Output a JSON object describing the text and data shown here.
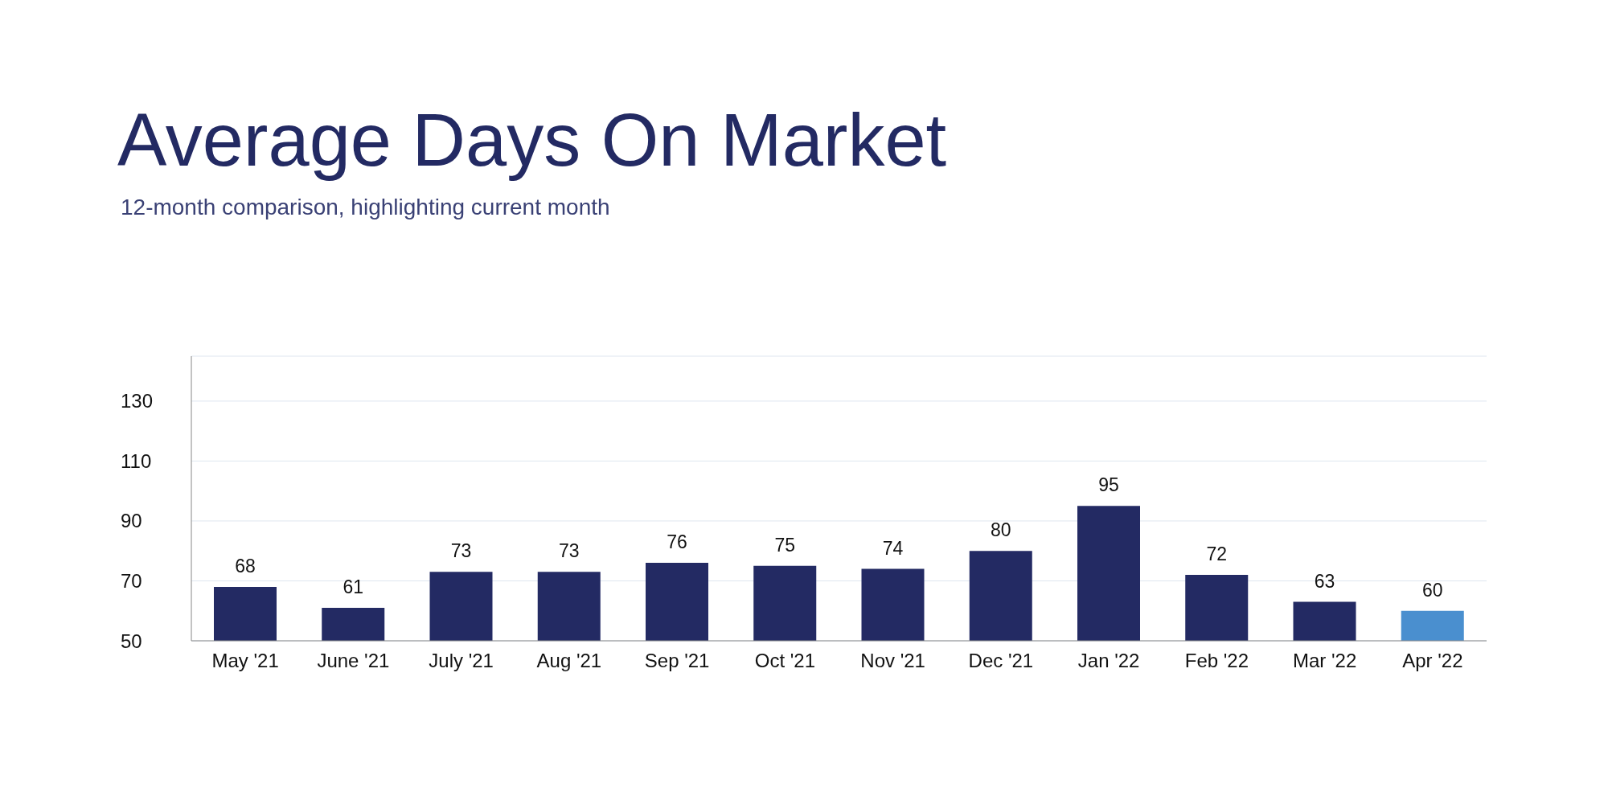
{
  "chart_data": {
    "type": "bar",
    "title": "Average Days On Market",
    "subtitle": "12-month comparison, highlighting current month",
    "categories": [
      "May '21",
      "June '21",
      "July '21",
      "Aug '21",
      "Sep '21",
      "Oct '21",
      "Nov '21",
      "Dec '21",
      "Jan '22",
      "Feb '22",
      "Mar '22",
      "Apr '22"
    ],
    "values": [
      68,
      61,
      73,
      73,
      76,
      75,
      74,
      80,
      95,
      72,
      63,
      60
    ],
    "colors": [
      "#232a63",
      "#232a63",
      "#232a63",
      "#232a63",
      "#232a63",
      "#232a63",
      "#232a63",
      "#232a63",
      "#232a63",
      "#232a63",
      "#232a63",
      "#4a8fcf"
    ],
    "ylim": [
      50,
      145
    ],
    "yticks": [
      50,
      70,
      90,
      110,
      130
    ],
    "grid": "y",
    "data_labels": true
  }
}
